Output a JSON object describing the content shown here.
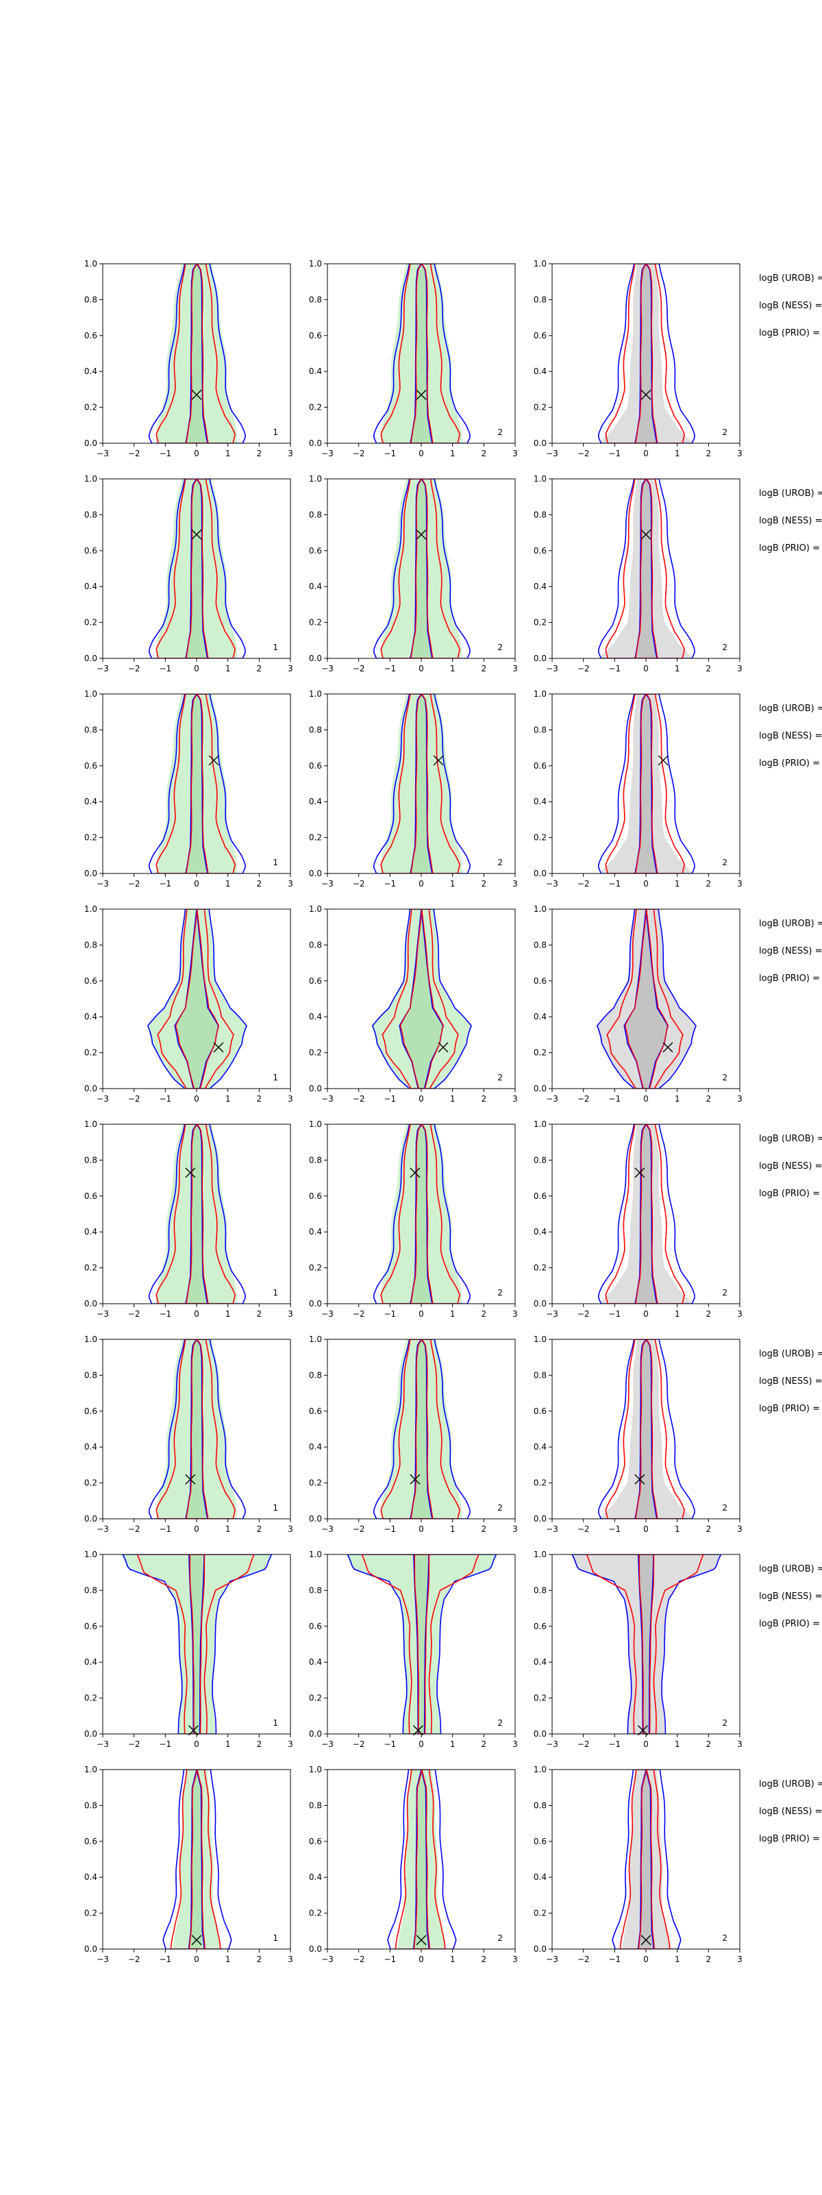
{
  "colors": {
    "urob": "#0000ff",
    "ness": "#ff0000",
    "fill_green": "#c8efc8",
    "fill_grey": "#d8d8d8",
    "fill_grey_dark": "#b8b8b8",
    "axis": "#000000"
  },
  "chart_data": {
    "type": "violin-contour-grid",
    "rows": 8,
    "cols": 3,
    "xlim": [
      -3,
      3
    ],
    "ylim": [
      0,
      1
    ],
    "xticks": [
      "−3",
      "−2",
      "−1",
      "0",
      "1",
      "2",
      "3"
    ],
    "yticks": [
      "0.0",
      "0.2",
      "0.4",
      "0.6",
      "0.8",
      "1.0"
    ],
    "panel_labels": [
      "1",
      "2",
      "2"
    ],
    "side_labels": [
      "logB (UROB) =",
      "logB (NESS) =",
      "logB (PRIO) ="
    ],
    "markers": [
      {
        "x": 0.0,
        "y": 0.27
      },
      {
        "x": 0.0,
        "y": 0.69
      },
      {
        "x": 0.55,
        "y": 0.63
      },
      {
        "x": 0.7,
        "y": 0.23
      },
      {
        "x": -0.2,
        "y": 0.73
      },
      {
        "x": -0.2,
        "y": 0.22
      },
      {
        "x": -0.1,
        "y": 0.02
      },
      {
        "x": 0.0,
        "y": 0.05
      }
    ]
  }
}
